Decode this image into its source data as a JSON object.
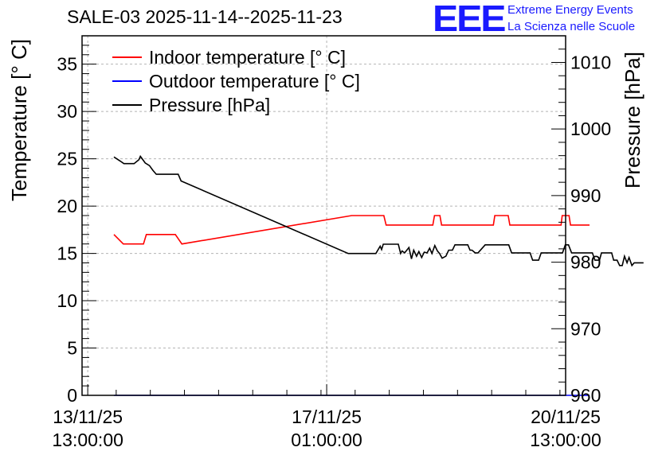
{
  "header": {
    "title": "SALE-03 2025-11-14--2025-11-23",
    "logo_text": "EEE",
    "logo_line1": "Extreme Energy Events",
    "logo_line2": "La Scienza nelle Scuole"
  },
  "colors": {
    "indoor": "#ff0000",
    "outdoor": "#0000ff",
    "pressure": "#000000",
    "grid": "#b4b4b4",
    "logo": "#1a1aff"
  },
  "chart_data": {
    "type": "line",
    "title": "SALE-03 2025-11-14--2025-11-23",
    "xlabel": "",
    "ylabel": "Temperature [° C]",
    "y2label": "Pressure [hPa]",
    "xlim_hours": [
      -2,
      168
    ],
    "ylim": [
      0,
      38
    ],
    "y2lim": [
      960,
      1014
    ],
    "x_ticks": [
      {
        "hours": 0,
        "line1": "13/11/25",
        "line2": "13:00:00"
      },
      {
        "hours": 84,
        "line1": "17/11/25",
        "line2": "01:00:00"
      },
      {
        "hours": 168,
        "line1": "20/11/25",
        "line2": "13:00:00"
      }
    ],
    "y_ticks": [
      0,
      5,
      10,
      15,
      20,
      25,
      30,
      35
    ],
    "y2_ticks": [
      960,
      970,
      980,
      990,
      1000,
      1010
    ],
    "legend": {
      "position": "top-left",
      "entries": [
        "Indoor temperature [° C]",
        "Outdoor temperature [° C]",
        "Pressure [hPa]"
      ]
    },
    "series": [
      {
        "name": "Indoor temperature [° C]",
        "axis": "left",
        "x": [
          9.2,
          12.5,
          15.0,
          19.6,
          20.6,
          30.8,
          33.1,
          92.8,
          104.1,
          104.9,
          121.3,
          121.9,
          123.8,
          124.4,
          142.6,
          143.1,
          147.8,
          148.4,
          166.4,
          166.8,
          169.2,
          169.7,
          176.4
        ],
        "values": [
          17,
          16,
          16,
          16,
          17,
          17,
          16,
          19,
          19,
          18,
          18,
          19,
          19,
          18,
          18,
          19,
          19,
          18,
          18,
          19,
          19,
          18,
          18
        ]
      },
      {
        "name": "Outdoor temperature [° C]",
        "axis": "left",
        "x": [
          9.2,
          176.4
        ],
        "values": [
          0,
          0
        ]
      },
      {
        "name": "Pressure [hPa]",
        "axis": "right",
        "x": [
          9.2,
          11.4,
          12.7,
          16.3,
          18.0,
          18.5,
          20.2,
          21.7,
          22.9,
          24.1,
          31.8,
          32.8,
          91.6,
          101.3,
          102.8,
          103.3,
          103.9,
          104.7,
          109.2,
          110.0,
          110.5,
          111.4,
          112.9,
          113.8,
          114.6,
          115.6,
          116.4,
          117.4,
          118.3,
          119.3,
          120.2,
          121.0,
          122.0,
          122.9,
          123.7,
          124.6,
          125.9,
          126.9,
          128.2,
          129.1,
          133.6,
          134.4,
          135.1,
          136.2,
          137.2,
          139.7,
          140.4,
          148.0,
          149.0,
          155.5,
          156.4,
          158.5,
          159.4,
          166.9,
          167.9,
          169.0,
          170.1,
          177.4,
          178.3,
          179.9,
          180.6,
          184.2,
          184.9,
          186.1,
          187.0,
          187.9,
          188.7,
          189.6,
          190.3,
          191.3,
          192.1,
          195.4
        ],
        "values": [
          995.8,
          995.2,
          994.8,
          994.8,
          995.4,
          995.9,
          994.9,
          994.5,
          993.8,
          993.2,
          993.2,
          992.2,
          981.3,
          981.3,
          982.4,
          981.9,
          982.7,
          982.7,
          982.7,
          981.3,
          981.7,
          981.4,
          982.2,
          980.5,
          981.8,
          980.9,
          981.6,
          980.7,
          981.5,
          981.4,
          982.1,
          981.3,
          982.5,
          981.7,
          981.3,
          980.6,
          980.9,
          981.8,
          981.8,
          982.6,
          982.6,
          981.8,
          981.8,
          981.4,
          981.4,
          982.6,
          982.6,
          982.6,
          981.4,
          981.4,
          980.3,
          980.3,
          981.4,
          981.4,
          982.6,
          982.6,
          981.4,
          981.4,
          980.3,
          980.3,
          981.4,
          981.4,
          980.3,
          980.3,
          979.5,
          979.5,
          980.9,
          979.9,
          980.7,
          979.5,
          979.9,
          979.9
        ]
      }
    ]
  }
}
